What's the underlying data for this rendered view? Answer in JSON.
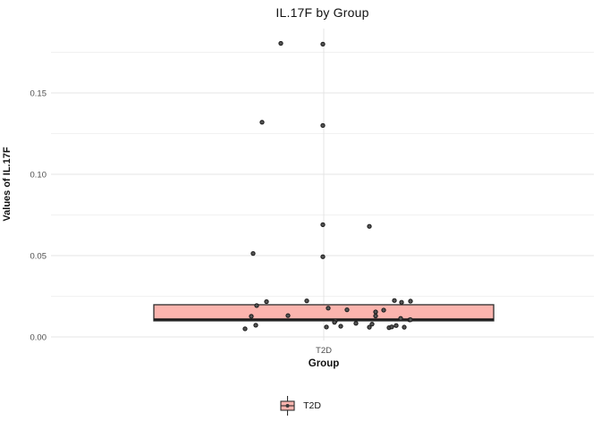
{
  "chart": {
    "title": "IL.17F by Group",
    "x_axis": {
      "label": "Group",
      "tick_label": "T2D"
    },
    "y_axis": {
      "label": "Values of IL.17F"
    },
    "legend": {
      "position": "bottom",
      "items": [
        {
          "label": "T2D"
        }
      ]
    }
  },
  "chart_data": {
    "type": "boxplot",
    "title": "IL.17F by Group",
    "xlabel": "Group",
    "ylabel": "Values of IL.17F",
    "categories": [
      "T2D"
    ],
    "ylim": [
      -0.002,
      0.19
    ],
    "y_major_ticks": [
      0,
      0.05,
      0.1,
      0.15
    ],
    "y_tick_labels": [
      "0.00",
      "0.05",
      "0.10",
      "0.15"
    ],
    "y_minor_ticks": [
      0.025,
      0.075,
      0.125,
      0.175
    ],
    "grid": "on",
    "legend_position": "bottom",
    "box": {
      "group": "T2D",
      "q1": 0.0099,
      "median": 0.0108,
      "q3": 0.0198,
      "whisker_low": 0.0099,
      "whisker_high": 0.0198
    },
    "points": [
      {
        "dx": -48,
        "v": 0.1805
      },
      {
        "dx": -1,
        "v": 0.18
      },
      {
        "dx": -69,
        "v": 0.132
      },
      {
        "dx": -1,
        "v": 0.13
      },
      {
        "dx": -1,
        "v": 0.069
      },
      {
        "dx": 51,
        "v": 0.068
      },
      {
        "dx": -79,
        "v": 0.0513
      },
      {
        "dx": -1,
        "v": 0.0493
      },
      {
        "dx": -75,
        "v": 0.0193
      },
      {
        "dx": -64,
        "v": 0.0217
      },
      {
        "dx": -19,
        "v": 0.0222
      },
      {
        "dx": -81,
        "v": 0.0127
      },
      {
        "dx": -40,
        "v": 0.0131
      },
      {
        "dx": -76,
        "v": 0.0072
      },
      {
        "dx": -88,
        "v": 0.005
      },
      {
        "dx": 79,
        "v": 0.0224
      },
      {
        "dx": 87,
        "v": 0.0213
      },
      {
        "dx": 97,
        "v": 0.022
      },
      {
        "dx": 5,
        "v": 0.0177
      },
      {
        "dx": 26,
        "v": 0.0167
      },
      {
        "dx": 58,
        "v": 0.0154
      },
      {
        "dx": 67,
        "v": 0.0165
      },
      {
        "dx": 58,
        "v": 0.0129
      },
      {
        "dx": 86,
        "v": 0.0114
      },
      {
        "dx": 96,
        "v": 0.0105
      },
      {
        "dx": 13,
        "v": 0.0099
      },
      {
        "dx": 3,
        "v": 0.0061
      },
      {
        "dx": 12,
        "v": 0.009
      },
      {
        "dx": 19,
        "v": 0.0066
      },
      {
        "dx": 36,
        "v": 0.0084
      },
      {
        "dx": 51,
        "v": 0.006
      },
      {
        "dx": 54,
        "v": 0.0079
      },
      {
        "dx": 73,
        "v": 0.0057
      },
      {
        "dx": 76,
        "v": 0.0062
      },
      {
        "dx": 81,
        "v": 0.007
      },
      {
        "dx": 90,
        "v": 0.006
      },
      {
        "dx": 97,
        "v": 0.0106
      }
    ],
    "colors": {
      "box_fill": "#FBB4AE",
      "box_stroke": "#2E2E2E",
      "median_stroke": "#1A1A1A",
      "point_fill": "#565656",
      "point_stroke": "#1F1F1F",
      "grid_major": "#E4E4E4",
      "grid_minor": "#F1F1F1",
      "tick_text": "#4D4D4D"
    }
  }
}
